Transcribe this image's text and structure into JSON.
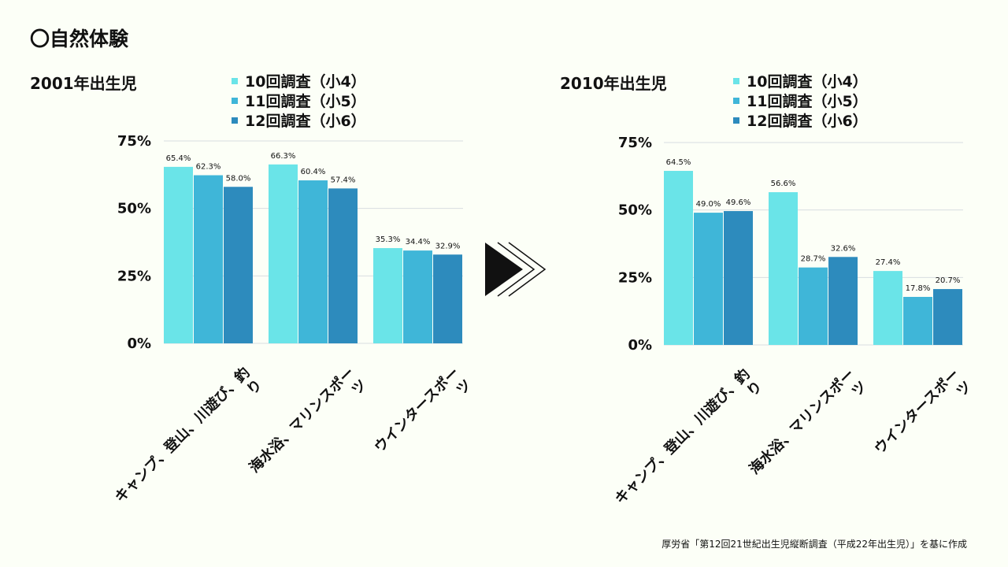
{
  "page": {
    "title": "〇自然体験",
    "source": "厚労省「第12回21世紀出生児縦断調査（平成22年出生児）」を基に作成"
  },
  "colors": {
    "series1": "#6ae4e8",
    "series2": "#3fb6d8",
    "series3": "#2d8bbd",
    "grid": "#d8dde0"
  },
  "chart_data": [
    {
      "type": "bar",
      "title": "2001年出生児",
      "categories": [
        [
          "キャンプ、登山、川遊び、釣",
          "り"
        ],
        [
          "海水浴、マリンスポー",
          "ツ"
        ],
        [
          "ウインタースポー",
          "ツ"
        ]
      ],
      "series": [
        {
          "name": "10回調査（小4）",
          "values": [
            65.4,
            66.3,
            35.3
          ]
        },
        {
          "name": "11回調査（小5）",
          "values": [
            62.3,
            60.4,
            34.4
          ]
        },
        {
          "name": "12回調査（小6）",
          "values": [
            58.0,
            57.4,
            32.9
          ]
        }
      ],
      "value_labels": [
        [
          "65.4%",
          "66.3%",
          "35.3%"
        ],
        [
          "62.3%",
          "60.4%",
          "34.4%"
        ],
        [
          "58.0%",
          "57.4%",
          "32.9%"
        ]
      ],
      "yticks": [
        "0%",
        "25%",
        "50%",
        "75%"
      ],
      "ylim": [
        0,
        75
      ],
      "grid": true,
      "legend": "top"
    },
    {
      "type": "bar",
      "title": "2010年出生児",
      "categories": [
        [
          "キャンプ、登山、川遊び、釣",
          "り"
        ],
        [
          "海水浴、マリンスポー",
          "ツ"
        ],
        [
          "ウインタースポー",
          "ツ"
        ]
      ],
      "series": [
        {
          "name": "10回調査（小4）",
          "values": [
            64.5,
            56.6,
            27.4
          ]
        },
        {
          "name": "11回調査（小5）",
          "values": [
            49.0,
            28.7,
            17.8
          ]
        },
        {
          "name": "12回調査（小6）",
          "values": [
            49.6,
            32.6,
            20.7
          ]
        }
      ],
      "value_labels": [
        [
          "64.5%",
          "56.6%",
          "27.4%"
        ],
        [
          "49.0%",
          "28.7%",
          "17.8%"
        ],
        [
          "49.6%",
          "32.6%",
          "20.7%"
        ]
      ],
      "yticks": [
        "0%",
        "25%",
        "50%",
        "75%"
      ],
      "ylim": [
        0,
        75
      ],
      "grid": true,
      "legend": "top"
    }
  ]
}
